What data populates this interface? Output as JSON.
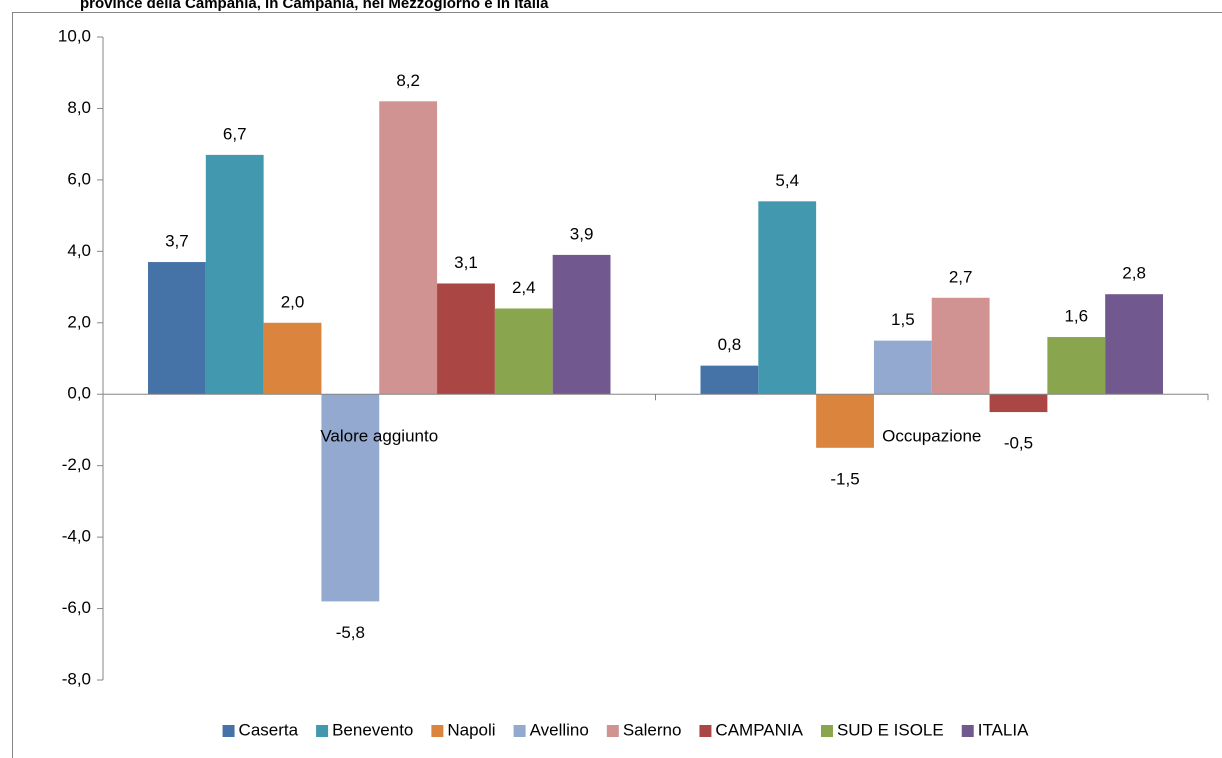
{
  "chart_data": {
    "type": "bar",
    "title": "province della Campania, in Campania, nel Mezzogiorno e in Italia",
    "categories": [
      "Valore aggiunto",
      "Occupazione"
    ],
    "series": [
      {
        "name": "Caserta",
        "color": "#4572a7",
        "values": [
          3.7,
          0.8
        ],
        "value_labels": [
          "3,7",
          "0,8"
        ]
      },
      {
        "name": "Benevento",
        "color": "#4198af",
        "values": [
          6.7,
          5.4
        ],
        "value_labels": [
          "6,7",
          "5,4"
        ]
      },
      {
        "name": "Napoli",
        "color": "#db843d",
        "values": [
          2.0,
          -1.5
        ],
        "value_labels": [
          "2,0",
          "-1,5"
        ]
      },
      {
        "name": "Avellino",
        "color": "#93a9cf",
        "values": [
          -5.8,
          1.5
        ],
        "value_labels": [
          "-5,8",
          "1,5"
        ]
      },
      {
        "name": "Salerno",
        "color": "#d19392",
        "values": [
          8.2,
          2.7
        ],
        "value_labels": [
          "8,2",
          "2,7"
        ]
      },
      {
        "name": "CAMPANIA",
        "color": "#aa4643",
        "values": [
          3.1,
          -0.5
        ],
        "value_labels": [
          "3,1",
          "-0,5"
        ]
      },
      {
        "name": "SUD E ISOLE",
        "color": "#89a54e",
        "values": [
          2.4,
          1.6
        ],
        "value_labels": [
          "2,4",
          "1,6"
        ]
      },
      {
        "name": "ITALIA",
        "color": "#71588f",
        "values": [
          3.9,
          2.8
        ],
        "value_labels": [
          "3,9",
          "2,8"
        ]
      }
    ],
    "ylim": [
      -8,
      10
    ],
    "yticks": [
      {
        "value": -8,
        "label": "-8,0"
      },
      {
        "value": -6,
        "label": "-6,0"
      },
      {
        "value": -4,
        "label": "-4,0"
      },
      {
        "value": -2,
        "label": "-2,0"
      },
      {
        "value": 0,
        "label": "0,0"
      },
      {
        "value": 2,
        "label": "2,0"
      },
      {
        "value": 4,
        "label": "4,0"
      },
      {
        "value": 6,
        "label": "6,0"
      },
      {
        "value": 8,
        "label": "8,0"
      },
      {
        "value": 10,
        "label": "10,0"
      }
    ],
    "legend": "bottom"
  }
}
